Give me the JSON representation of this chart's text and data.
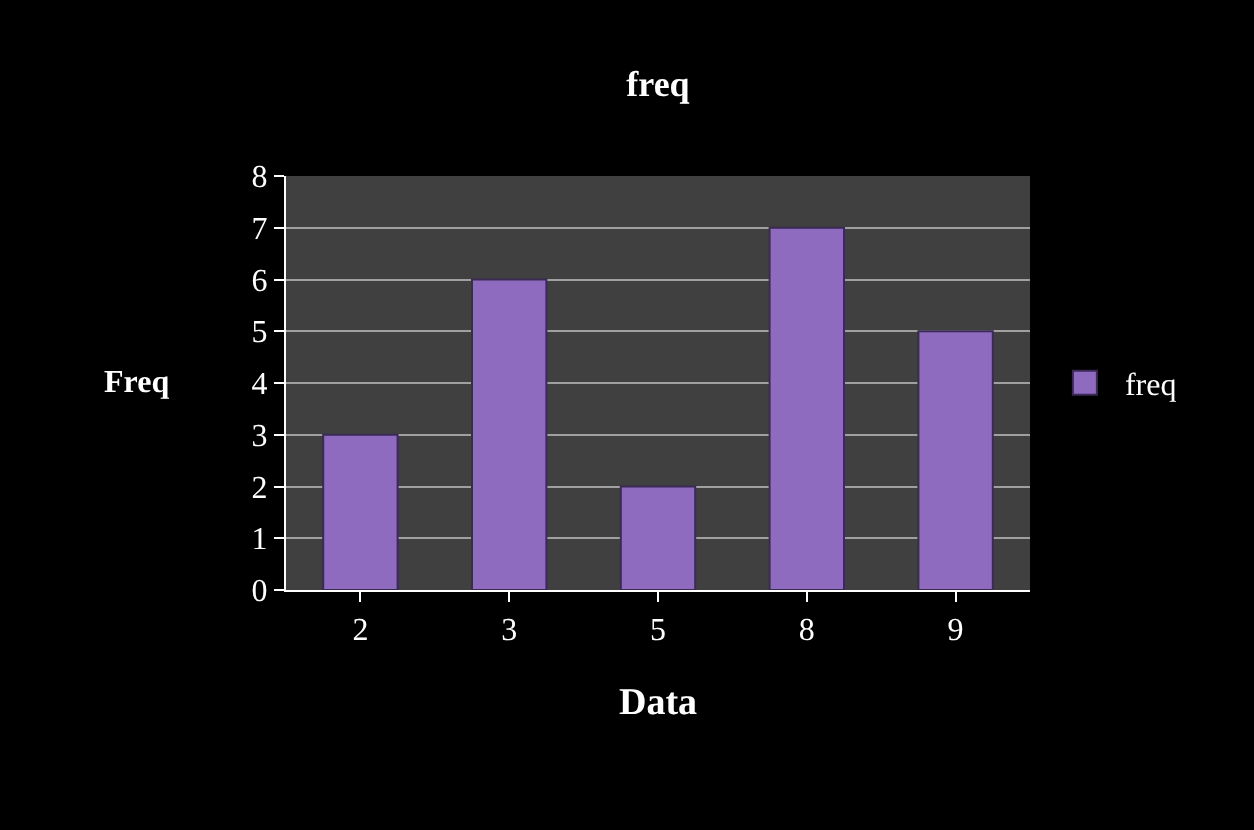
{
  "chart_data": {
    "type": "bar",
    "title": "freq",
    "xlabel": "Data",
    "ylabel": "Freq",
    "categories": [
      "2",
      "3",
      "5",
      "8",
      "9"
    ],
    "series": [
      {
        "name": "freq",
        "color": "#8e6bbf",
        "values": [
          3,
          6,
          2,
          7,
          5
        ]
      }
    ],
    "ylim": [
      0,
      8
    ],
    "yticks": [
      0,
      1,
      2,
      3,
      4,
      5,
      6,
      7,
      8
    ],
    "grid": "y",
    "legend": "right"
  }
}
